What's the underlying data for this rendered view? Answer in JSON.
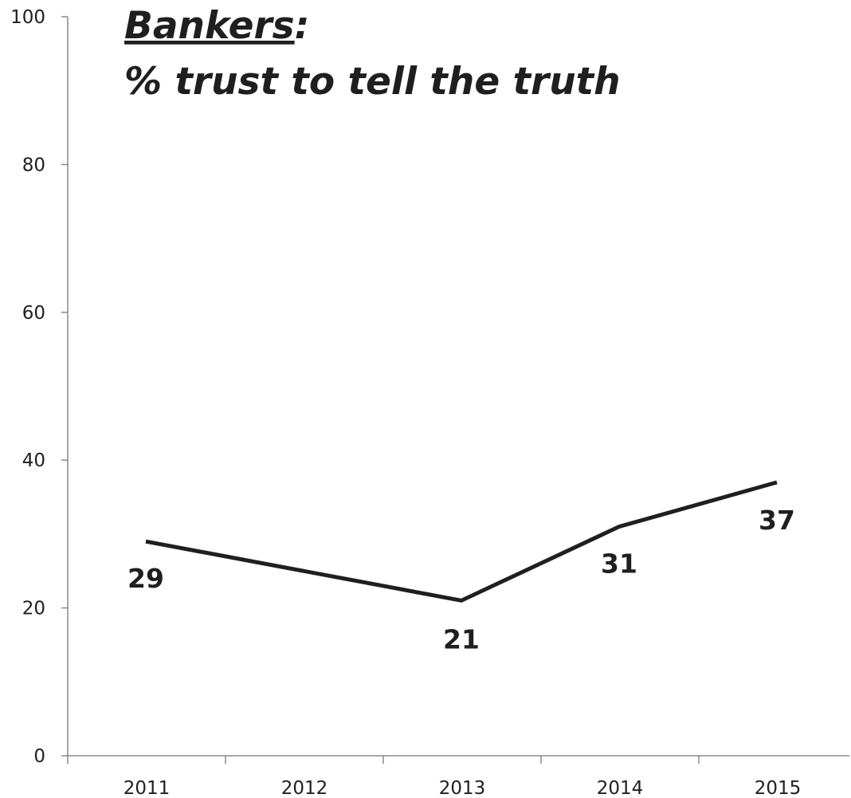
{
  "chart_data": {
    "type": "line",
    "title": {
      "main": "Bankers",
      "suffix": ":",
      "subtitle": "% trust to tell the truth"
    },
    "categories": [
      "2011",
      "2012",
      "2013",
      "2014",
      "2015"
    ],
    "series": [
      {
        "points": [
          {
            "x": "2011",
            "y": 29
          },
          {
            "x": "2013",
            "y": 21
          },
          {
            "x": "2014",
            "y": 31
          },
          {
            "x": "2015",
            "y": 37
          }
        ]
      }
    ],
    "data_labels": [
      "29",
      "21",
      "31",
      "37"
    ],
    "yticks": [
      "0",
      "20",
      "40",
      "60",
      "80",
      "100"
    ],
    "ylim": [
      0,
      100
    ],
    "grid": false,
    "legend": "none",
    "colors": {
      "line": "#1f1f1f",
      "axis": "#888888",
      "text": "#1f1f1f"
    }
  }
}
